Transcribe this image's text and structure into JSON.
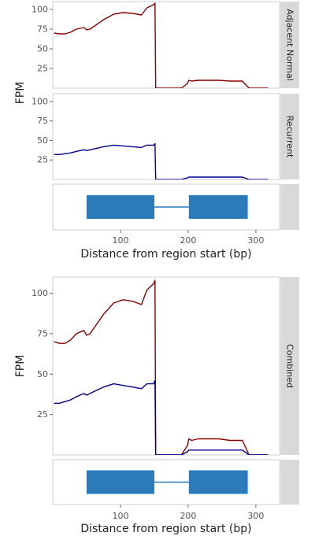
{
  "chart_data": [
    {
      "type": "line",
      "xlabel": "Distance from region start (bp)",
      "ylabel": "FPM",
      "xlim": [
        0,
        335
      ],
      "x_ticks": [
        100,
        200,
        300
      ],
      "panels": [
        {
          "strip": "Adjacent Normal",
          "ylim": [
            0,
            110
          ],
          "y_ticks": [
            25,
            50,
            75,
            100
          ],
          "series": [
            {
              "color": "#8b0000",
              "x": [
                2,
                10,
                18,
                26,
                35,
                46,
                50,
                55,
                65,
                75,
                90,
                104,
                118,
                131,
                139,
                149,
                151,
                152,
                155,
                160,
                175,
                190,
                199,
                201,
                205,
                215,
                230,
                245,
                262,
                275,
                280,
                290,
                300,
                318
              ],
              "y": [
                70,
                69,
                69,
                71,
                75,
                77,
                74,
                75,
                81,
                87,
                94,
                96,
                95,
                93,
                102,
                106,
                108,
                0,
                0,
                0,
                0,
                0,
                6,
                10,
                9,
                10,
                10,
                10,
                9,
                9,
                9,
                0,
                0,
                0
              ]
            }
          ]
        },
        {
          "strip": "Recurrent",
          "ylim": [
            0,
            110
          ],
          "y_ticks": [
            25,
            50,
            75,
            100
          ],
          "series": [
            {
              "color": "#00008b",
              "x": [
                2,
                10,
                18,
                26,
                35,
                46,
                50,
                55,
                65,
                75,
                90,
                104,
                118,
                131,
                139,
                149,
                151,
                152,
                155,
                160,
                175,
                190,
                199,
                201,
                205,
                215,
                230,
                245,
                262,
                275,
                280,
                290,
                300,
                318
              ],
              "y": [
                32,
                32,
                33,
                34,
                36,
                38,
                37,
                38,
                40,
                42,
                44,
                43,
                42,
                41,
                44,
                44,
                46,
                0,
                0,
                0,
                0,
                0,
                2,
                3,
                3,
                3,
                3,
                3,
                3,
                3,
                3,
                0,
                0,
                0
              ]
            }
          ]
        }
      ],
      "gene_model": {
        "exons": [
          [
            50,
            150
          ],
          [
            201,
            288
          ]
        ],
        "intron": [
          150,
          201
        ],
        "color": "#2b7bba"
      }
    },
    {
      "type": "line",
      "xlabel": "Distance from region start (bp)",
      "ylabel": "FPM",
      "xlim": [
        0,
        335
      ],
      "x_ticks": [
        100,
        200,
        300
      ],
      "panels": [
        {
          "strip": "Combined",
          "ylim": [
            0,
            110
          ],
          "y_ticks": [
            25,
            50,
            75,
            100
          ],
          "series": [
            {
              "color": "#8b0000",
              "x": [
                2,
                10,
                18,
                26,
                35,
                46,
                50,
                55,
                65,
                75,
                90,
                104,
                118,
                131,
                139,
                149,
                151,
                152,
                155,
                160,
                175,
                190,
                199,
                201,
                205,
                215,
                230,
                245,
                262,
                275,
                280,
                290,
                300,
                318
              ],
              "y": [
                70,
                69,
                69,
                71,
                75,
                77,
                74,
                75,
                81,
                87,
                94,
                96,
                95,
                93,
                102,
                106,
                108,
                0,
                0,
                0,
                0,
                0,
                6,
                10,
                9,
                10,
                10,
                10,
                9,
                9,
                9,
                0,
                0,
                0
              ]
            },
            {
              "color": "#00008b",
              "x": [
                2,
                10,
                18,
                26,
                35,
                46,
                50,
                55,
                65,
                75,
                90,
                104,
                118,
                131,
                139,
                149,
                151,
                152,
                155,
                160,
                175,
                190,
                199,
                201,
                205,
                215,
                230,
                245,
                262,
                275,
                280,
                290,
                300,
                318
              ],
              "y": [
                32,
                32,
                33,
                34,
                36,
                38,
                37,
                38,
                40,
                42,
                44,
                43,
                42,
                41,
                44,
                44,
                46,
                0,
                0,
                0,
                0,
                0,
                2,
                3,
                3,
                3,
                3,
                3,
                3,
                3,
                3,
                0,
                0,
                0
              ]
            }
          ]
        }
      ],
      "gene_model": {
        "exons": [
          [
            50,
            150
          ],
          [
            201,
            288
          ]
        ],
        "intron": [
          150,
          201
        ],
        "color": "#2b7bba"
      }
    }
  ]
}
